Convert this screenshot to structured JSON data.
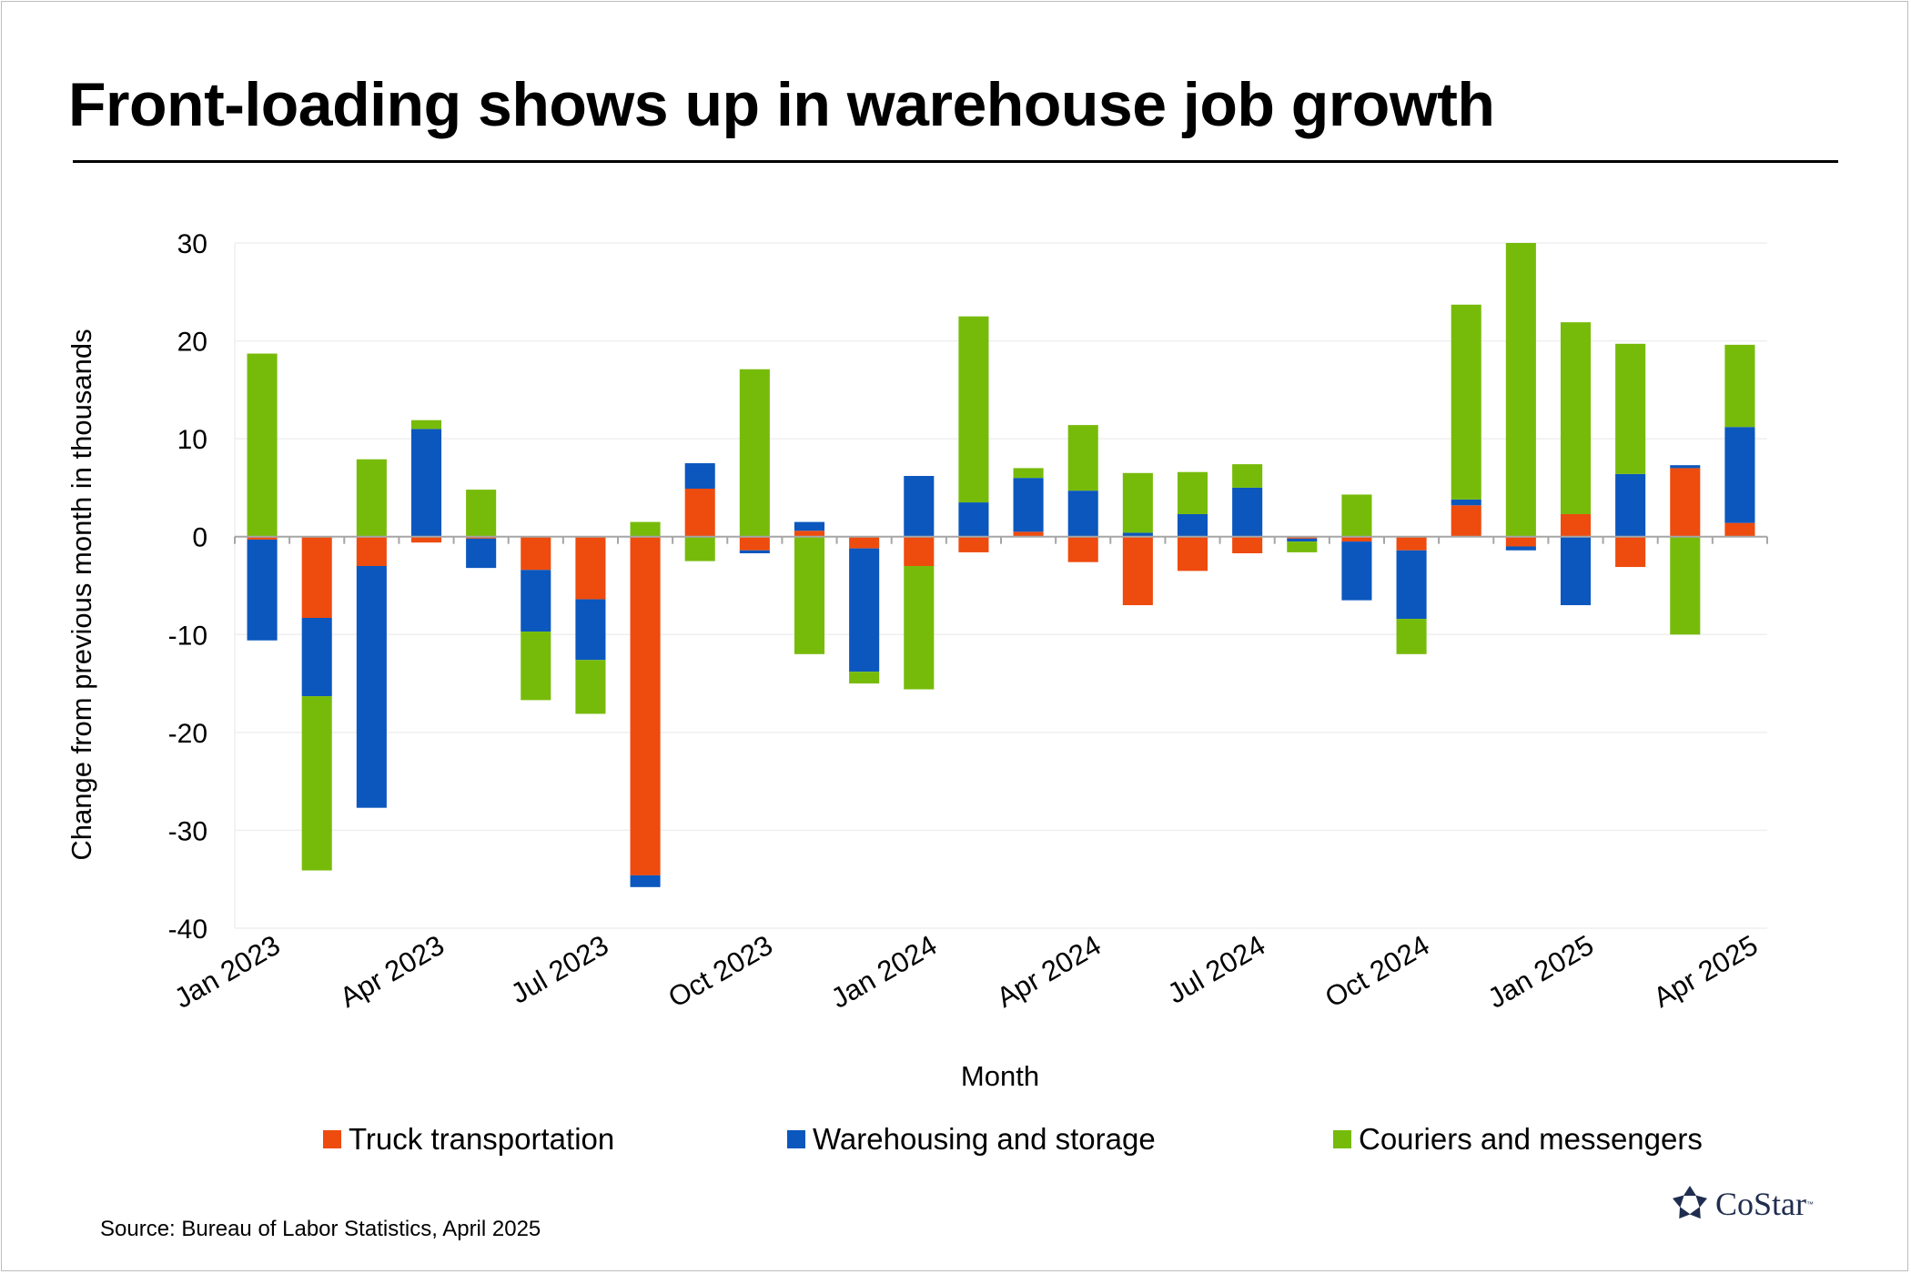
{
  "title": "Front-loading shows up in warehouse job growth",
  "source": "Source: Bureau of Labor Statistics, April 2025",
  "logo": {
    "text": "CoStar",
    "tm": "™",
    "icon": "costar-star-icon"
  },
  "colors": {
    "truck": "#EE4B0E",
    "warehouse": "#0B57BE",
    "couriers": "#77BB0A",
    "grid": "#efefef",
    "axis": "#a6a6a6"
  },
  "legend": [
    {
      "label": "Truck transportation",
      "color": "#EE4B0E"
    },
    {
      "label": "Warehousing and storage",
      "color": "#0B57BE"
    },
    {
      "label": "Couriers and messengers",
      "color": "#77BB0A"
    }
  ],
  "chart_data": {
    "type": "bar",
    "stacked": true,
    "xlabel": "Month",
    "ylabel": "Change from previous month in thousands",
    "ylim": [
      -40,
      30
    ],
    "yticks": [
      30,
      20,
      10,
      0,
      -10,
      -20,
      -30,
      -40
    ],
    "grid": true,
    "legend_position": "bottom",
    "categories": [
      "Jan 2023",
      "Feb 2023",
      "Mar 2023",
      "Apr 2023",
      "May 2023",
      "Jun 2023",
      "Jul 2023",
      "Aug 2023",
      "Sep 2023",
      "Oct 2023",
      "Nov 2023",
      "Dec 2023",
      "Jan 2024",
      "Feb 2024",
      "Mar 2024",
      "Apr 2024",
      "May 2024",
      "Jun 2024",
      "Jul 2024",
      "Aug 2024",
      "Sep 2024",
      "Oct 2024",
      "Nov 2024",
      "Dec 2024",
      "Jan 2025",
      "Feb 2025",
      "Mar 2025",
      "Apr 2025"
    ],
    "tick_labels": [
      {
        "index": 0,
        "label": "Jan 2023"
      },
      {
        "index": 3,
        "label": "Apr 2023"
      },
      {
        "index": 6,
        "label": "Jul 2023"
      },
      {
        "index": 9,
        "label": "Oct 2023"
      },
      {
        "index": 12,
        "label": "Jan 2024"
      },
      {
        "index": 15,
        "label": "Apr 2024"
      },
      {
        "index": 18,
        "label": "Jul 2024"
      },
      {
        "index": 21,
        "label": "Oct 2024"
      },
      {
        "index": 24,
        "label": "Jan 2025"
      },
      {
        "index": 27,
        "label": "Apr 2025"
      }
    ],
    "series": [
      {
        "name": "Truck transportation",
        "values": [
          -0.3,
          -8.3,
          -3.0,
          -0.6,
          -0.2,
          -3.4,
          -6.4,
          -34.6,
          4.9,
          -1.4,
          0.6,
          -1.2,
          -3.0,
          -1.6,
          0.5,
          -2.6,
          -7.0,
          -3.5,
          -1.7,
          -0.2,
          -0.5,
          -1.4,
          3.2,
          -1.0,
          2.3,
          -3.1,
          7.0,
          1.4
        ]
      },
      {
        "name": "Warehousing and storage",
        "values": [
          -10.3,
          -8.0,
          -24.7,
          11.0,
          -3.0,
          -6.3,
          -6.2,
          -1.2,
          2.6,
          -0.3,
          0.9,
          -12.6,
          6.2,
          3.5,
          5.5,
          4.7,
          0.4,
          2.3,
          5.0,
          -0.3,
          -6.0,
          -7.0,
          0.6,
          -0.4,
          -7.0,
          6.4,
          0.3,
          9.8
        ]
      },
      {
        "name": "Couriers and messengers",
        "values": [
          18.7,
          -17.8,
          7.9,
          0.9,
          4.8,
          -7.0,
          -5.5,
          1.5,
          -2.5,
          17.1,
          -12.0,
          -1.2,
          -12.6,
          19.0,
          1.0,
          6.7,
          6.1,
          4.3,
          2.4,
          -1.1,
          4.3,
          -3.6,
          19.9,
          30.0,
          19.6,
          13.3,
          -10.0,
          8.4
        ]
      }
    ]
  }
}
